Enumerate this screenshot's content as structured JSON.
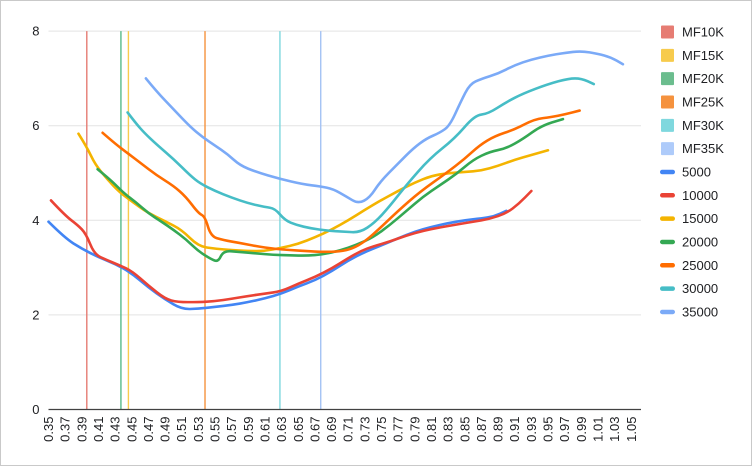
{
  "chart_data": {
    "type": "line",
    "title": "",
    "xlabel": "",
    "ylabel": "",
    "xlim": [
      0.35,
      1.05
    ],
    "ylim": [
      0,
      8
    ],
    "grid": "horizontal",
    "legend_position": "right",
    "x_tick_labels": [
      "0.35",
      "0.37",
      "0.39",
      "0.41",
      "0.43",
      "0.45",
      "0.47",
      "0.49",
      "0.51",
      "0.53",
      "0.55",
      "0.57",
      "0.59",
      "0.61",
      "0.63",
      "0.65",
      "0.67",
      "0.69",
      "0.71",
      "0.73",
      "0.75",
      "0.77",
      "0.79",
      "0.81",
      "0.83",
      "0.85",
      "0.87",
      "0.89",
      "0.91",
      "0.93",
      "0.95",
      "0.97",
      "0.99",
      "1.01",
      "1.03",
      "1.05"
    ],
    "y_tick_labels": [
      "0",
      "2",
      "4",
      "6",
      "8"
    ],
    "y_tick_values": [
      0,
      2,
      4,
      6,
      8
    ],
    "axis_color": "#424242",
    "gridline_color": "#e3e3e3",
    "vertical_lines": [
      {
        "label": "MF10K",
        "x": 0.396,
        "color": "#E67C73"
      },
      {
        "label": "MF15K",
        "x": 0.446,
        "color": "#F7CB4D"
      },
      {
        "label": "MF20K",
        "x": 0.437,
        "color": "#57BB8A"
      },
      {
        "label": "MF25K",
        "x": 0.538,
        "color": "#F5923E"
      },
      {
        "label": "MF30K",
        "x": 0.628,
        "color": "#7FD8DE"
      },
      {
        "label": "MF35K",
        "x": 0.677,
        "color": "#A4C2F4"
      }
    ],
    "series": [
      {
        "name": "5000",
        "color": "#4285F4",
        "points": [
          [
            0.35,
            3.97
          ],
          [
            0.37,
            3.62
          ],
          [
            0.39,
            3.4
          ],
          [
            0.41,
            3.22
          ],
          [
            0.43,
            3.08
          ],
          [
            0.45,
            2.88
          ],
          [
            0.47,
            2.58
          ],
          [
            0.49,
            2.33
          ],
          [
            0.51,
            2.12
          ],
          [
            0.53,
            2.13
          ],
          [
            0.55,
            2.17
          ],
          [
            0.57,
            2.21
          ],
          [
            0.59,
            2.27
          ],
          [
            0.61,
            2.35
          ],
          [
            0.63,
            2.45
          ],
          [
            0.65,
            2.6
          ],
          [
            0.67,
            2.73
          ],
          [
            0.69,
            2.92
          ],
          [
            0.71,
            3.15
          ],
          [
            0.73,
            3.33
          ],
          [
            0.75,
            3.47
          ],
          [
            0.77,
            3.62
          ],
          [
            0.79,
            3.76
          ],
          [
            0.81,
            3.86
          ],
          [
            0.83,
            3.94
          ],
          [
            0.85,
            4.0
          ],
          [
            0.87,
            4.04
          ],
          [
            0.885,
            4.08
          ],
          [
            0.9,
            4.2
          ]
        ]
      },
      {
        "name": "10000",
        "color": "#EA4335",
        "points": [
          [
            0.353,
            4.42
          ],
          [
            0.37,
            4.1
          ],
          [
            0.385,
            3.9
          ],
          [
            0.395,
            3.72
          ],
          [
            0.405,
            3.28
          ],
          [
            0.42,
            3.16
          ],
          [
            0.435,
            3.05
          ],
          [
            0.45,
            2.93
          ],
          [
            0.47,
            2.62
          ],
          [
            0.49,
            2.34
          ],
          [
            0.505,
            2.27
          ],
          [
            0.53,
            2.27
          ],
          [
            0.55,
            2.29
          ],
          [
            0.57,
            2.34
          ],
          [
            0.59,
            2.4
          ],
          [
            0.61,
            2.45
          ],
          [
            0.63,
            2.5
          ],
          [
            0.65,
            2.66
          ],
          [
            0.67,
            2.8
          ],
          [
            0.69,
            2.98
          ],
          [
            0.71,
            3.2
          ],
          [
            0.725,
            3.35
          ],
          [
            0.74,
            3.45
          ],
          [
            0.76,
            3.55
          ],
          [
            0.78,
            3.68
          ],
          [
            0.8,
            3.78
          ],
          [
            0.82,
            3.85
          ],
          [
            0.84,
            3.91
          ],
          [
            0.86,
            3.97
          ],
          [
            0.88,
            4.03
          ],
          [
            0.9,
            4.15
          ],
          [
            0.915,
            4.35
          ],
          [
            0.93,
            4.62
          ]
        ]
      },
      {
        "name": "15000",
        "color": "#F4B400",
        "points": [
          [
            0.386,
            5.83
          ],
          [
            0.396,
            5.55
          ],
          [
            0.406,
            5.18
          ],
          [
            0.42,
            4.88
          ],
          [
            0.435,
            4.6
          ],
          [
            0.45,
            4.4
          ],
          [
            0.47,
            4.15
          ],
          [
            0.49,
            3.98
          ],
          [
            0.51,
            3.8
          ],
          [
            0.53,
            3.45
          ],
          [
            0.55,
            3.4
          ],
          [
            0.57,
            3.37
          ],
          [
            0.59,
            3.35
          ],
          [
            0.61,
            3.35
          ],
          [
            0.63,
            3.42
          ],
          [
            0.65,
            3.5
          ],
          [
            0.67,
            3.64
          ],
          [
            0.69,
            3.8
          ],
          [
            0.71,
            4.0
          ],
          [
            0.73,
            4.22
          ],
          [
            0.75,
            4.43
          ],
          [
            0.77,
            4.62
          ],
          [
            0.79,
            4.8
          ],
          [
            0.81,
            4.94
          ],
          [
            0.83,
            5.0
          ],
          [
            0.85,
            5.02
          ],
          [
            0.87,
            5.05
          ],
          [
            0.89,
            5.15
          ],
          [
            0.91,
            5.28
          ],
          [
            0.93,
            5.38
          ],
          [
            0.95,
            5.48
          ]
        ]
      },
      {
        "name": "20000",
        "color": "#34A853",
        "points": [
          [
            0.409,
            5.08
          ],
          [
            0.425,
            4.85
          ],
          [
            0.44,
            4.58
          ],
          [
            0.455,
            4.38
          ],
          [
            0.47,
            4.15
          ],
          [
            0.485,
            3.98
          ],
          [
            0.5,
            3.8
          ],
          [
            0.515,
            3.6
          ],
          [
            0.53,
            3.35
          ],
          [
            0.545,
            3.18
          ],
          [
            0.554,
            3.12
          ],
          [
            0.56,
            3.36
          ],
          [
            0.58,
            3.33
          ],
          [
            0.6,
            3.3
          ],
          [
            0.62,
            3.27
          ],
          [
            0.64,
            3.26
          ],
          [
            0.66,
            3.25
          ],
          [
            0.68,
            3.28
          ],
          [
            0.7,
            3.36
          ],
          [
            0.72,
            3.48
          ],
          [
            0.74,
            3.64
          ],
          [
            0.76,
            3.9
          ],
          [
            0.78,
            4.2
          ],
          [
            0.8,
            4.5
          ],
          [
            0.82,
            4.74
          ],
          [
            0.84,
            4.98
          ],
          [
            0.86,
            5.28
          ],
          [
            0.88,
            5.45
          ],
          [
            0.9,
            5.52
          ],
          [
            0.92,
            5.72
          ],
          [
            0.942,
            6.0
          ],
          [
            0.968,
            6.14
          ]
        ]
      },
      {
        "name": "25000",
        "color": "#FF6D01",
        "points": [
          [
            0.415,
            5.85
          ],
          [
            0.43,
            5.62
          ],
          [
            0.445,
            5.42
          ],
          [
            0.46,
            5.22
          ],
          [
            0.48,
            4.95
          ],
          [
            0.5,
            4.73
          ],
          [
            0.515,
            4.5
          ],
          [
            0.53,
            4.15
          ],
          [
            0.538,
            4.08
          ],
          [
            0.545,
            3.66
          ],
          [
            0.56,
            3.58
          ],
          [
            0.58,
            3.52
          ],
          [
            0.6,
            3.45
          ],
          [
            0.62,
            3.4
          ],
          [
            0.64,
            3.37
          ],
          [
            0.66,
            3.35
          ],
          [
            0.68,
            3.33
          ],
          [
            0.7,
            3.34
          ],
          [
            0.715,
            3.4
          ],
          [
            0.73,
            3.55
          ],
          [
            0.748,
            3.83
          ],
          [
            0.77,
            4.2
          ],
          [
            0.796,
            4.6
          ],
          [
            0.828,
            5.0
          ],
          [
            0.85,
            5.3
          ],
          [
            0.868,
            5.59
          ],
          [
            0.886,
            5.78
          ],
          [
            0.91,
            5.92
          ],
          [
            0.934,
            6.14
          ],
          [
            0.954,
            6.18
          ],
          [
            0.97,
            6.24
          ],
          [
            0.988,
            6.32
          ]
        ]
      },
      {
        "name": "30000",
        "color": "#46BDC6",
        "points": [
          [
            0.445,
            6.28
          ],
          [
            0.455,
            6.05
          ],
          [
            0.465,
            5.85
          ],
          [
            0.48,
            5.6
          ],
          [
            0.5,
            5.3
          ],
          [
            0.52,
            4.95
          ],
          [
            0.532,
            4.78
          ],
          [
            0.55,
            4.62
          ],
          [
            0.57,
            4.48
          ],
          [
            0.59,
            4.36
          ],
          [
            0.61,
            4.28
          ],
          [
            0.622,
            4.25
          ],
          [
            0.634,
            4.0
          ],
          [
            0.648,
            3.9
          ],
          [
            0.665,
            3.83
          ],
          [
            0.685,
            3.78
          ],
          [
            0.705,
            3.76
          ],
          [
            0.724,
            3.74
          ],
          [
            0.742,
            3.95
          ],
          [
            0.76,
            4.3
          ],
          [
            0.78,
            4.75
          ],
          [
            0.808,
            5.31
          ],
          [
            0.838,
            5.73
          ],
          [
            0.862,
            6.22
          ],
          [
            0.878,
            6.25
          ],
          [
            0.9,
            6.5
          ],
          [
            0.92,
            6.68
          ],
          [
            0.95,
            6.88
          ],
          [
            0.975,
            7.0
          ],
          [
            0.99,
            7.0
          ],
          [
            1.005,
            6.88
          ]
        ]
      },
      {
        "name": "35000",
        "color": "#7BAAF7",
        "points": [
          [
            0.467,
            7.0
          ],
          [
            0.48,
            6.72
          ],
          [
            0.5,
            6.35
          ],
          [
            0.52,
            5.98
          ],
          [
            0.535,
            5.76
          ],
          [
            0.55,
            5.58
          ],
          [
            0.565,
            5.4
          ],
          [
            0.58,
            5.16
          ],
          [
            0.6,
            5.02
          ],
          [
            0.627,
            4.88
          ],
          [
            0.656,
            4.76
          ],
          [
            0.676,
            4.72
          ],
          [
            0.692,
            4.66
          ],
          [
            0.708,
            4.5
          ],
          [
            0.722,
            4.35
          ],
          [
            0.736,
            4.48
          ],
          [
            0.748,
            4.81
          ],
          [
            0.77,
            5.2
          ],
          [
            0.788,
            5.52
          ],
          [
            0.804,
            5.73
          ],
          [
            0.82,
            5.85
          ],
          [
            0.832,
            6.0
          ],
          [
            0.845,
            6.5
          ],
          [
            0.856,
            6.88
          ],
          [
            0.87,
            6.99
          ],
          [
            0.89,
            7.1
          ],
          [
            0.91,
            7.28
          ],
          [
            0.93,
            7.4
          ],
          [
            0.95,
            7.48
          ],
          [
            0.97,
            7.54
          ],
          [
            0.99,
            7.58
          ],
          [
            1.01,
            7.52
          ],
          [
            1.025,
            7.45
          ],
          [
            1.04,
            7.3
          ]
        ]
      }
    ],
    "legend": [
      {
        "label": "MF10K",
        "swatch": "square",
        "color": "#E67C73"
      },
      {
        "label": "MF15K",
        "swatch": "square",
        "color": "#F7CB4D"
      },
      {
        "label": "MF20K",
        "swatch": "square",
        "color": "#6BBD8E"
      },
      {
        "label": "MF25K",
        "swatch": "square",
        "color": "#F5923E"
      },
      {
        "label": "MF30K",
        "swatch": "square",
        "color": "#7FD8DE"
      },
      {
        "label": "MF35K",
        "swatch": "square",
        "color": "#AECBFA"
      },
      {
        "label": "5000",
        "swatch": "line",
        "color": "#4285F4"
      },
      {
        "label": "10000",
        "swatch": "line",
        "color": "#EA4335"
      },
      {
        "label": "15000",
        "swatch": "line",
        "color": "#F4B400"
      },
      {
        "label": "20000",
        "swatch": "line",
        "color": "#34A853"
      },
      {
        "label": "25000",
        "swatch": "line",
        "color": "#FF6D01"
      },
      {
        "label": "30000",
        "swatch": "line",
        "color": "#46BDC6"
      },
      {
        "label": "35000",
        "swatch": "line",
        "color": "#7BAAF7"
      }
    ]
  }
}
